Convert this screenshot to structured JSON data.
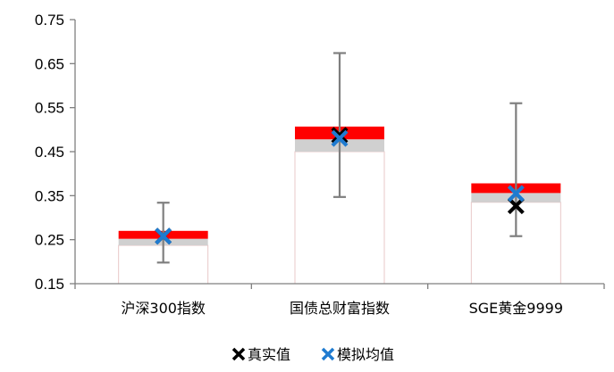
{
  "chart_data": {
    "type": "bar",
    "categories": [
      "沪深300指数",
      "国债总财富指数",
      "SGE黄金9999"
    ],
    "y_ticks": [
      "0.15",
      "0.25",
      "0.35",
      "0.45",
      "0.55",
      "0.65",
      "0.75"
    ],
    "ylim": [
      0.15,
      0.75
    ],
    "grid": false,
    "legend_position": "bottom-center",
    "series": [
      {
        "name": "真实值",
        "values": [
          0.258,
          0.487,
          0.327
        ]
      },
      {
        "name": "模拟均值",
        "values": [
          0.258,
          0.48,
          0.355
        ]
      }
    ],
    "error_bars": {
      "low": [
        0.198,
        0.347,
        0.258
      ],
      "high": [
        0.334,
        0.674,
        0.56
      ]
    },
    "bands": {
      "base": [
        0.237,
        0.45,
        0.335
      ],
      "grey_top": [
        0.252,
        0.478,
        0.356
      ],
      "red_top": [
        0.27,
        0.507,
        0.378
      ]
    },
    "legend": [
      "真实值",
      "模拟均值"
    ],
    "colors": {
      "red_band": "#ff0000",
      "grey_band": "#d0d0d0",
      "bar_outline": "#e8c8c8",
      "error_bar": "#7f7f7f",
      "true_marker": "#000000",
      "sim_marker": "#1f7bd0",
      "axis": "#7f7f7f"
    }
  }
}
